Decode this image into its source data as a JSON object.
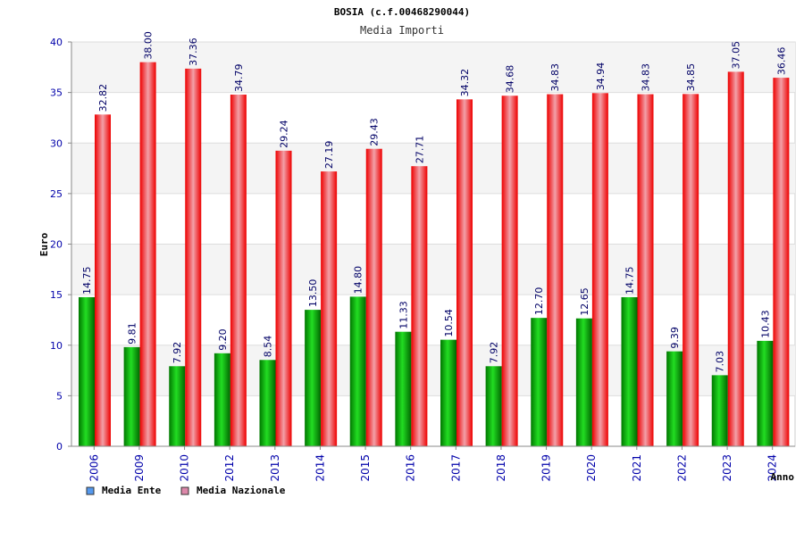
{
  "chart_data": {
    "type": "bar",
    "title": "BOSIA (c.f.00468290044)",
    "subtitle": "Media Importi",
    "xlabel": "Anno",
    "ylabel": "Euro",
    "ylim": [
      0,
      40
    ],
    "yticks": [
      0,
      5,
      10,
      15,
      20,
      25,
      30,
      35,
      40
    ],
    "grid": true,
    "legend_position": "bottom-left",
    "categories": [
      "2006",
      "2009",
      "2010",
      "2012",
      "2013",
      "2014",
      "2015",
      "2016",
      "2017",
      "2018",
      "2019",
      "2020",
      "2021",
      "2022",
      "2023",
      "2024"
    ],
    "series": [
      {
        "name": "Media Ente",
        "color": "#00aa00",
        "legend_color": "#5599ee",
        "values": [
          14.75,
          9.81,
          7.92,
          9.2,
          8.54,
          13.5,
          14.8,
          11.33,
          10.54,
          7.92,
          12.7,
          12.65,
          14.75,
          9.39,
          7.03,
          10.43
        ],
        "labels": [
          "14.75",
          "9.81",
          "7.92",
          "9.20",
          "8.54",
          "13.50",
          "14.80",
          "11.33",
          "10.54",
          "7.92",
          "12.70",
          "12.65",
          "14.75",
          "9.39",
          "7.03",
          "10.43"
        ]
      },
      {
        "name": "Media Nazionale",
        "color": "#ee1111",
        "legend_color": "#dd88aa",
        "values": [
          32.82,
          38.0,
          37.36,
          34.79,
          29.24,
          27.19,
          29.43,
          27.71,
          34.32,
          34.68,
          34.83,
          34.94,
          34.83,
          34.85,
          37.05,
          36.46
        ],
        "labels": [
          "32.82",
          "38.00",
          "37.36",
          "34.79",
          "29.24",
          "27.19",
          "29.43",
          "27.71",
          "34.32",
          "34.68",
          "34.83",
          "34.94",
          "34.83",
          "34.85",
          "37.05",
          "36.46"
        ]
      }
    ]
  }
}
